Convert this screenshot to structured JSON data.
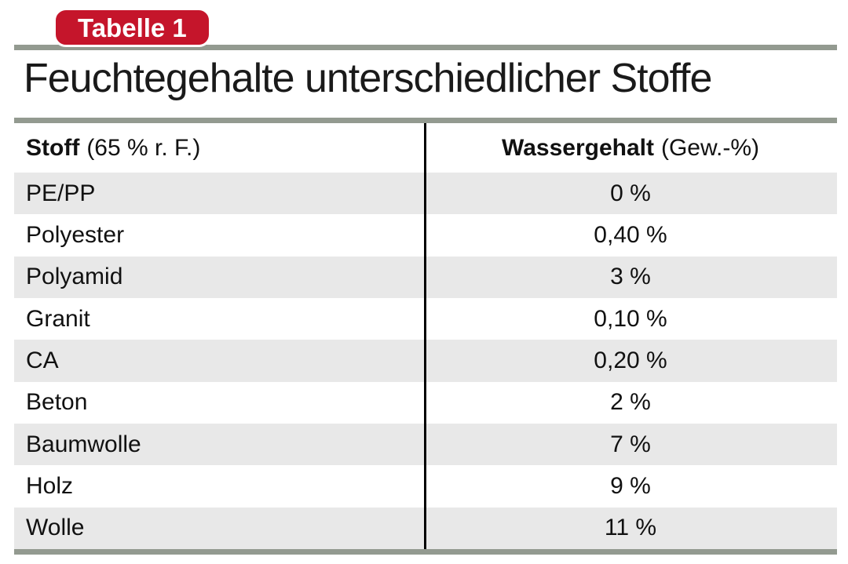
{
  "badge": {
    "label": "Tabelle 1"
  },
  "title": "Feuchtegehalte unterschiedlicher Stoffe",
  "colors": {
    "badge_red": "#c5152b",
    "rule_gray": "#939a90",
    "row_stripe": "#e8e8e8",
    "text": "#1a1a1a"
  },
  "table": {
    "header": {
      "col1_label": "Stoff",
      "col1_note": "(65 % r. F.)",
      "col2_label": "Wassergehalt",
      "col2_note": "(Gew.-%)"
    },
    "rows": [
      {
        "stoff": "PE/PP",
        "wassergehalt": "0 %"
      },
      {
        "stoff": "Polyester",
        "wassergehalt": "0,40 %"
      },
      {
        "stoff": "Polyamid",
        "wassergehalt": "3 %"
      },
      {
        "stoff": "Granit",
        "wassergehalt": "0,10 %"
      },
      {
        "stoff": "CA",
        "wassergehalt": "0,20 %"
      },
      {
        "stoff": "Beton",
        "wassergehalt": "2 %"
      },
      {
        "stoff": "Baumwolle",
        "wassergehalt": "7 %"
      },
      {
        "stoff": "Holz",
        "wassergehalt": "9 %"
      },
      {
        "stoff": "Wolle",
        "wassergehalt": "11 %"
      }
    ]
  }
}
